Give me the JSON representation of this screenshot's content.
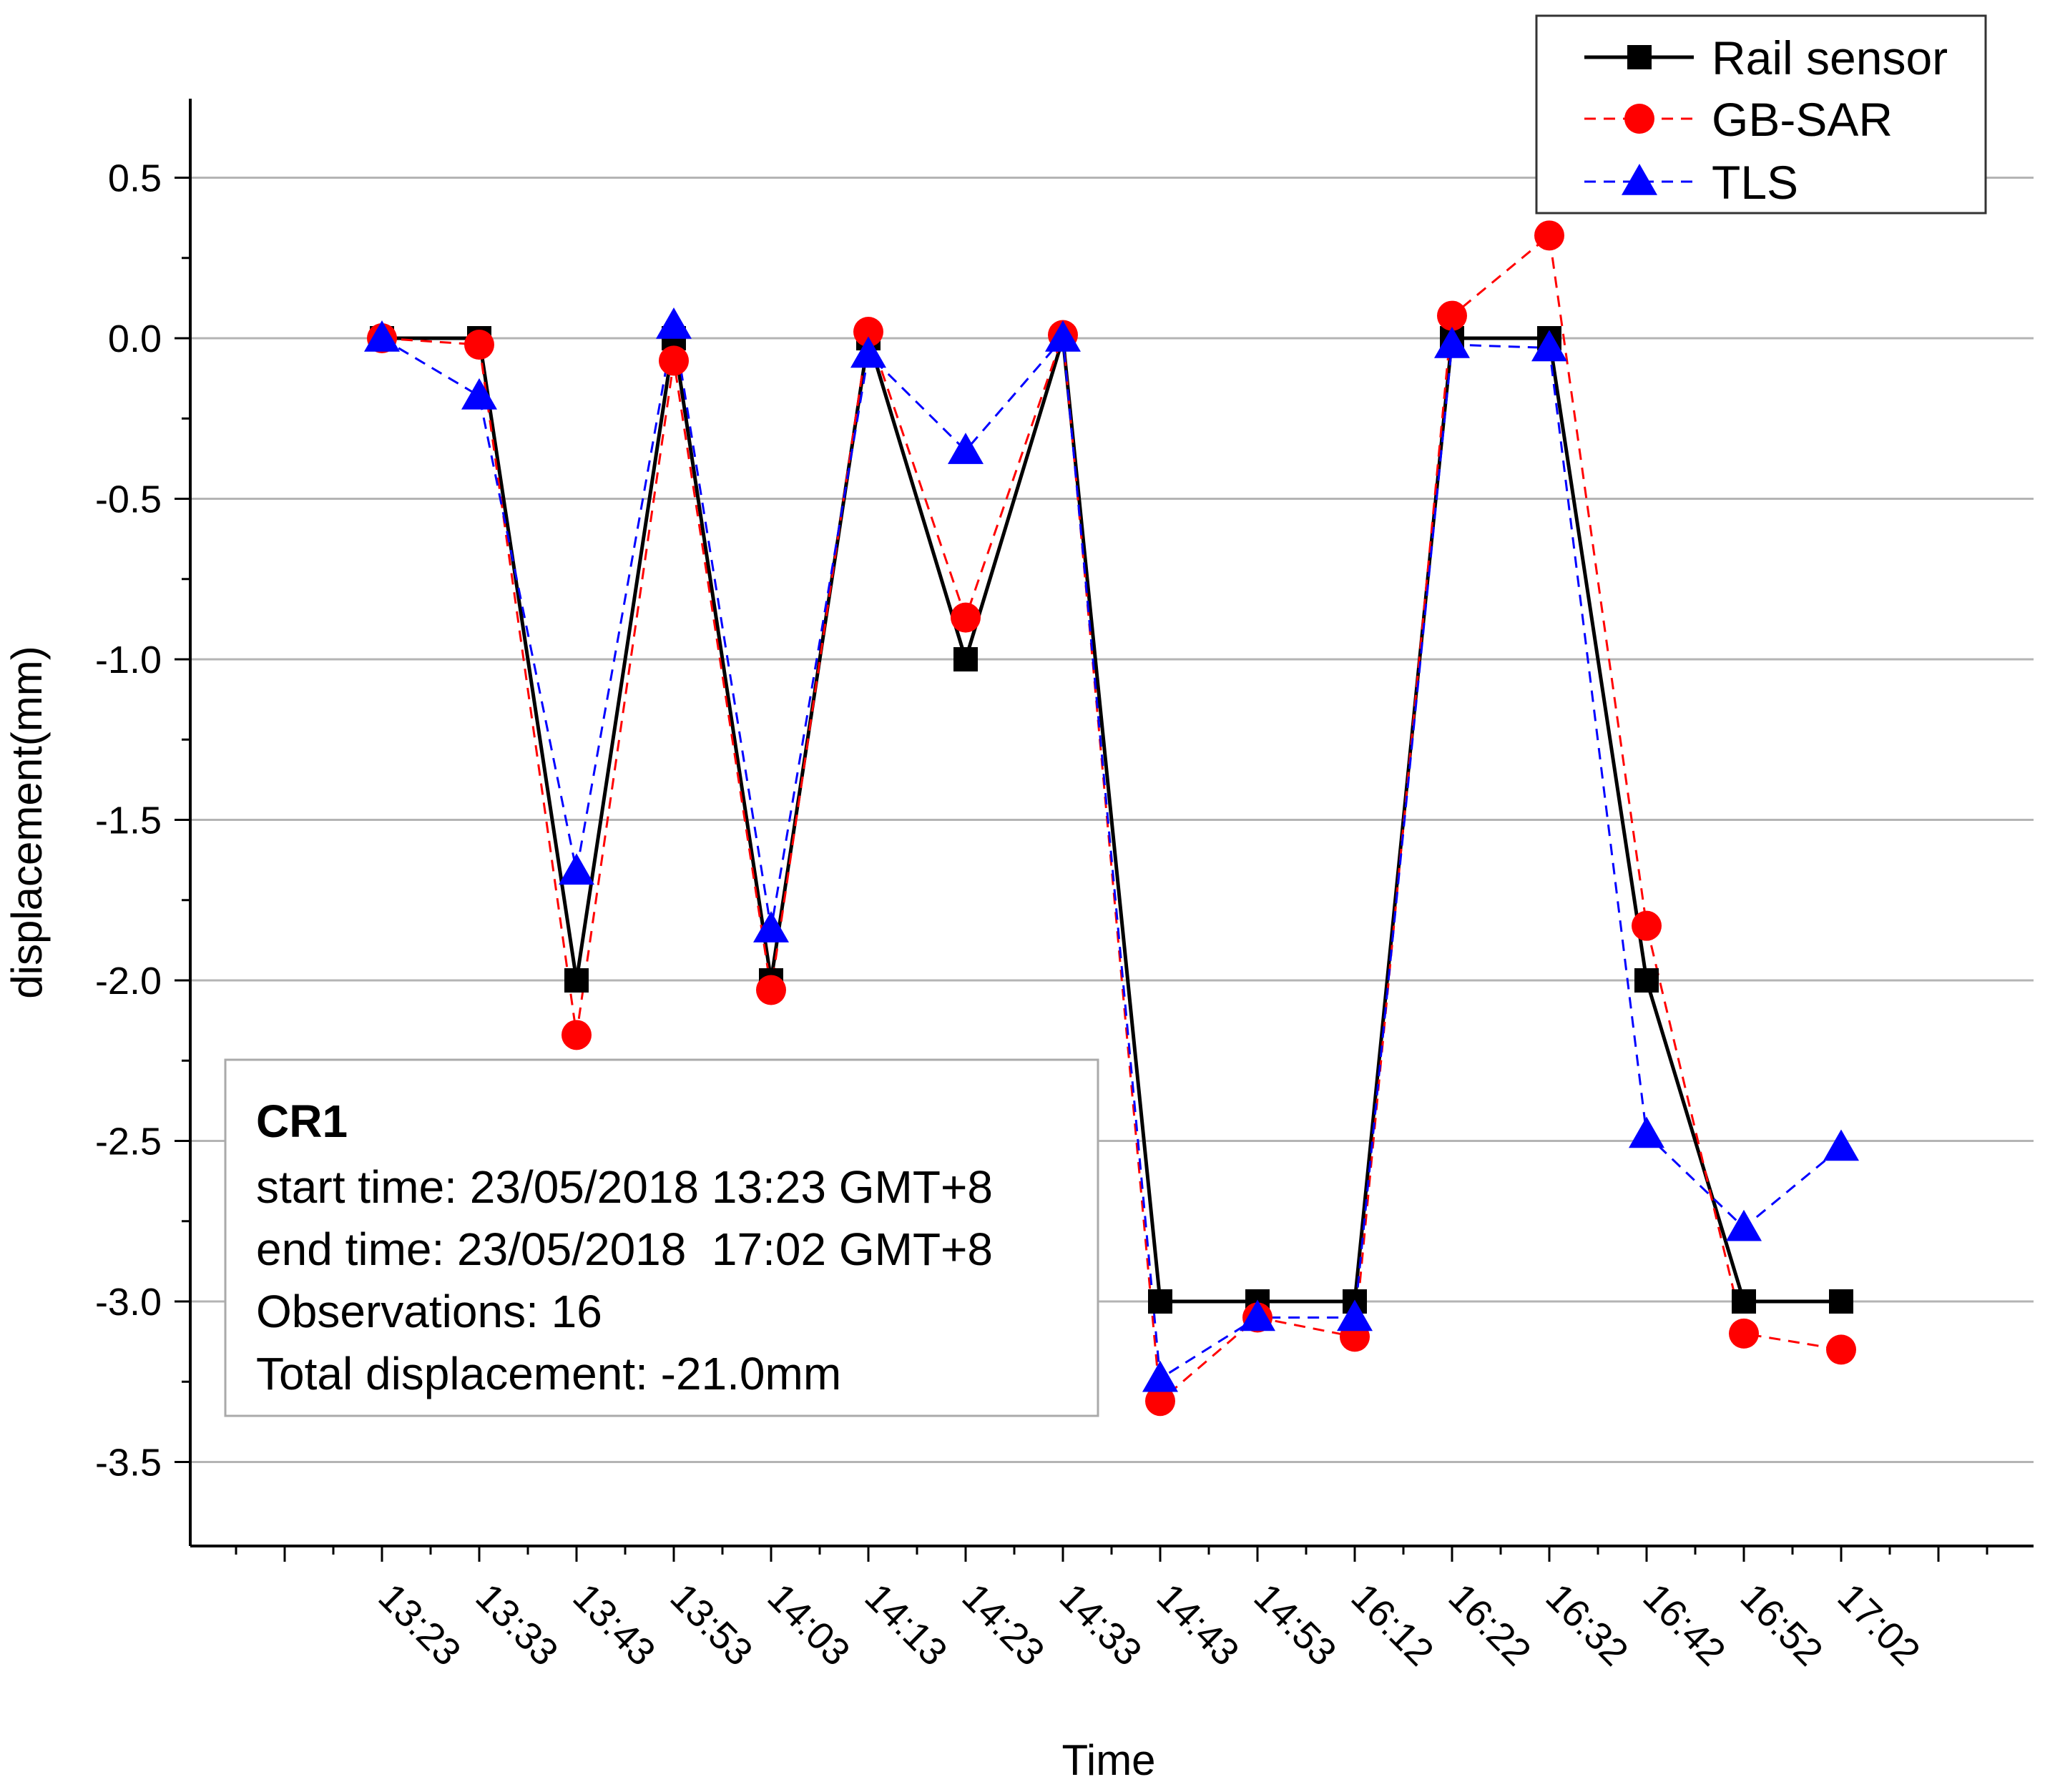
{
  "chart_data": {
    "type": "line",
    "title": "",
    "xlabel": "Time",
    "ylabel": "displacement(mm)",
    "ylim": [
      -3.75,
      0.75
    ],
    "yticks": [
      0.5,
      0.0,
      -0.5,
      -1.0,
      -1.5,
      -2.0,
      -2.5,
      -3.0,
      -3.5
    ],
    "ytick_labels": [
      "0.5",
      "0.0",
      "-0.5",
      "-1.0",
      "-1.5",
      "-2.0",
      "-2.5",
      "-3.0",
      "-3.5"
    ],
    "grid": true,
    "legend_position": "top-right",
    "categories": [
      "13:23",
      "13:33",
      "13:43",
      "13:53",
      "14:03",
      "14:13",
      "14:23",
      "14:33",
      "14:43",
      "14:53",
      "16:12",
      "16:22",
      "16:32",
      "16:42",
      "16:52",
      "17:02"
    ],
    "series": [
      {
        "name": "Rail sensor",
        "color": "#000000",
        "marker": "square",
        "line": "solid",
        "values": [
          0,
          0,
          -2,
          0,
          -2,
          0,
          -1,
          0,
          -3,
          -3,
          -3,
          0,
          0,
          -2,
          -3,
          -3
        ]
      },
      {
        "name": "GB-SAR",
        "color": "#ff0000",
        "marker": "circle",
        "line": "dashed",
        "values": [
          0,
          -0.02,
          -2.17,
          -0.07,
          -2.03,
          0.02,
          -0.87,
          0.01,
          -3.31,
          -3.05,
          -3.11,
          0.07,
          0.32,
          -1.83,
          -3.1,
          -3.15
        ]
      },
      {
        "name": "TLS",
        "color": "#0000ff",
        "marker": "triangle",
        "line": "dashed",
        "values": [
          0,
          -0.18,
          -1.66,
          0.04,
          -1.84,
          -0.05,
          -0.35,
          0.0,
          -3.24,
          -3.05,
          -3.05,
          -0.02,
          -0.03,
          -2.48,
          -2.77,
          -2.52
        ]
      }
    ],
    "annotation": {
      "title": "CR1",
      "lines": [
        "start time: 23/05/2018 13:23 GMT+8",
        "end time: 23/05/2018  17:02 GMT+8",
        "Observations: 16",
        "Total displacement: -21.0mm"
      ]
    }
  }
}
